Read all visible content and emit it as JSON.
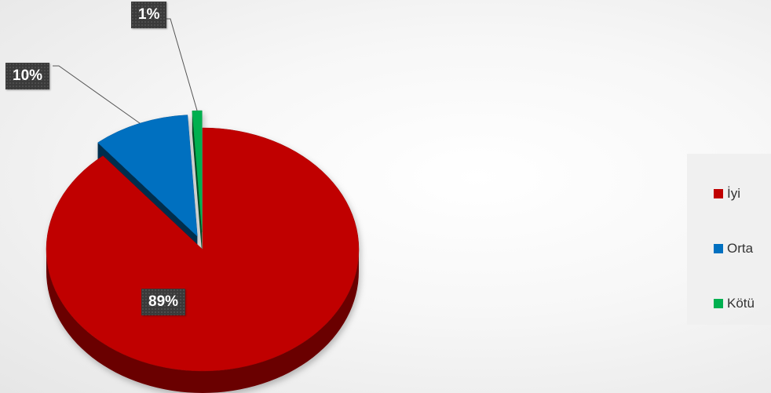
{
  "chart_data": {
    "type": "pie",
    "categories": [
      "İyi",
      "Orta",
      "Kötü"
    ],
    "values": [
      89,
      10,
      1
    ],
    "data_labels": [
      "89%",
      "10%",
      "1%"
    ],
    "colors": [
      "#c00000",
      "#0070c0",
      "#00b050"
    ],
    "exploded": true,
    "three_d": true,
    "legend_position": "right"
  },
  "legend": {
    "items": [
      {
        "label": "İyi",
        "color": "#c00000"
      },
      {
        "label": "Orta",
        "color": "#0070c0"
      },
      {
        "label": "Kötü",
        "color": "#00b050"
      }
    ]
  }
}
